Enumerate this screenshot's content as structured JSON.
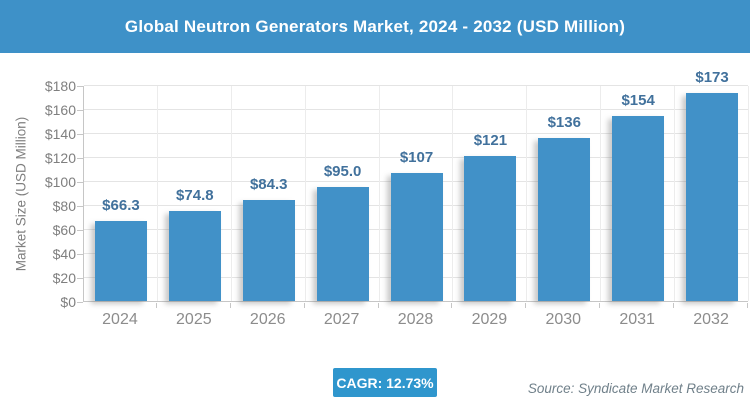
{
  "header": {
    "title": "Global Neutron Generators Market, 2024 - 2032 (USD Million)",
    "background_color": "#3E91C8",
    "text_color": "#FFFFFF"
  },
  "chart_data": {
    "type": "bar",
    "title": "Global Neutron Generators Market, 2024 - 2032 (USD Million)",
    "categories": [
      "2024",
      "2025",
      "2026",
      "2027",
      "2028",
      "2029",
      "2030",
      "2031",
      "2032"
    ],
    "values": [
      66.3,
      74.8,
      84.3,
      95.0,
      107,
      121,
      136,
      154,
      173
    ],
    "value_labels": [
      "$66.3",
      "$74.8",
      "$84.3",
      "$95.0",
      "$107",
      "$121",
      "$136",
      "$154",
      "$173"
    ],
    "xlabel": "",
    "ylabel": "Market Size (USD Million)",
    "ylim": [
      0,
      180
    ],
    "ytick_step": 20,
    "ytick_prefix": "$",
    "grid": true,
    "legend": "none",
    "bar_color": "#4191C8",
    "value_label_color": "#41719C",
    "axis_text_color": "#7F7F7F"
  },
  "footer": {
    "cagr_label": "CAGR: 12.73%",
    "cagr_badge_color": "#2F96CD",
    "source": "Source: Syndicate Market Research"
  }
}
